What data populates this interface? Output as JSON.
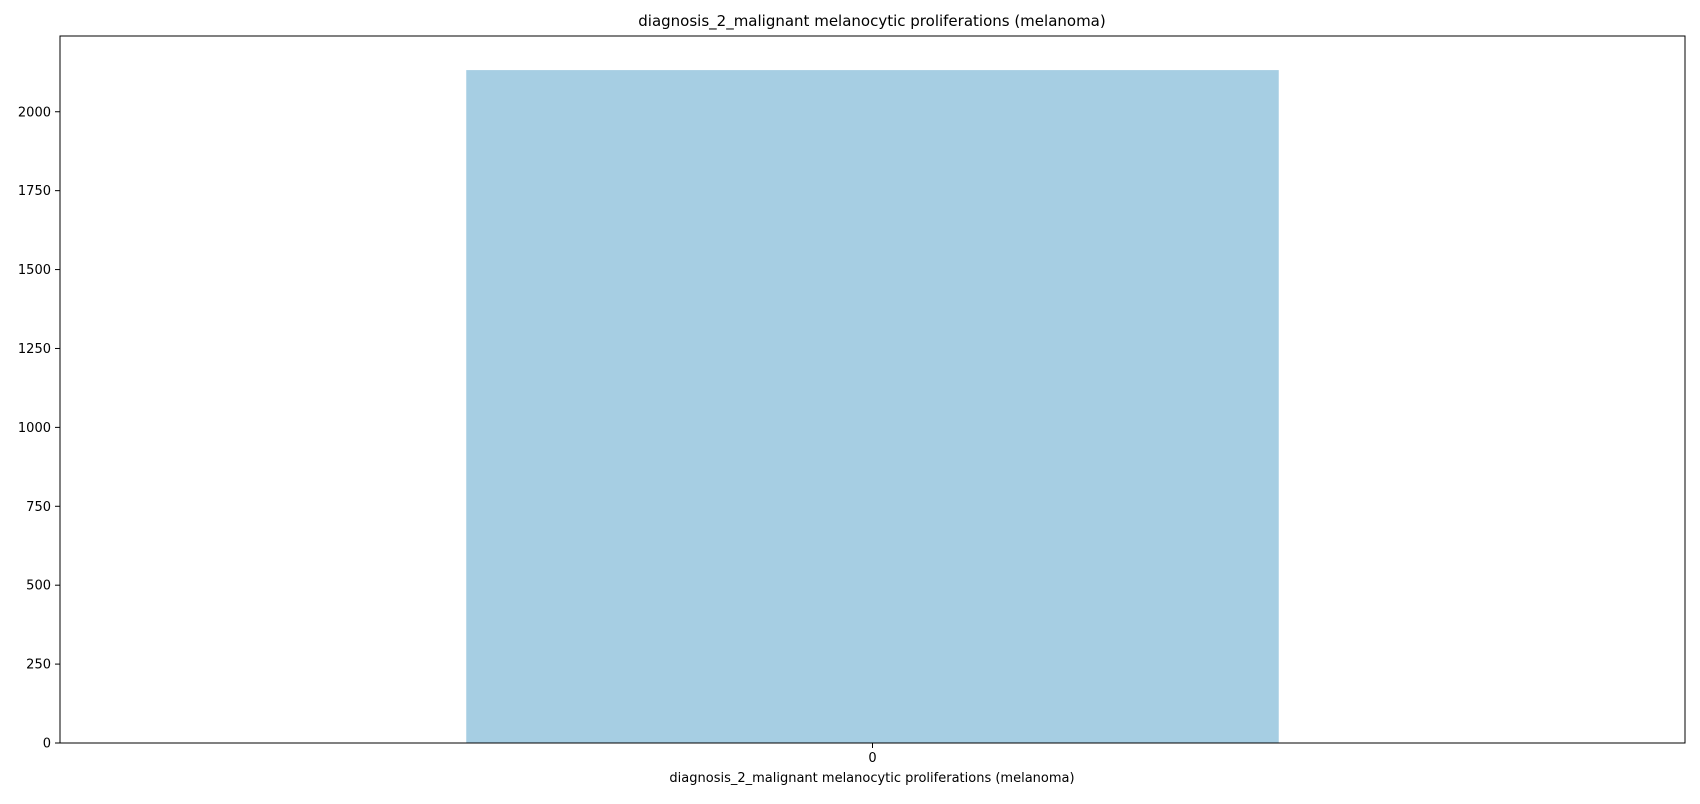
{
  "chart_data": {
    "type": "bar",
    "title": "diagnosis_2_malignant melanocytic proliferations (melanoma)",
    "xlabel": "diagnosis_2_malignant melanocytic proliferations (melanoma)",
    "ylabel": "",
    "categories": [
      "0"
    ],
    "values": [
      2132
    ],
    "ylim": [
      0,
      2240
    ],
    "yticks": [
      0,
      250,
      500,
      750,
      1000,
      1250,
      1500,
      1750,
      2000
    ],
    "bar_color": "#a6cee3",
    "grid": false,
    "legend": "none"
  }
}
